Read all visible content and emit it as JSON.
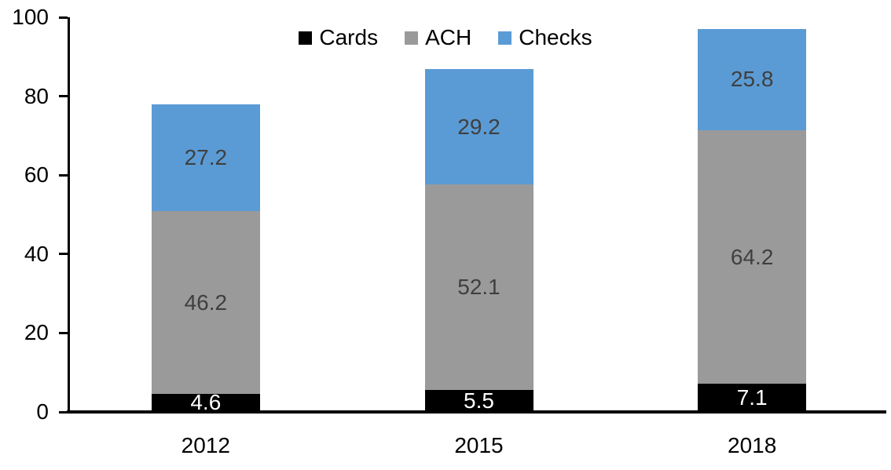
{
  "chart_data": {
    "type": "bar",
    "stacked": true,
    "categories": [
      "2012",
      "2015",
      "2018"
    ],
    "series": [
      {
        "name": "Cards",
        "color": "#000000",
        "label_color": "#ffffff",
        "values": [
          4.6,
          5.5,
          7.1
        ]
      },
      {
        "name": "ACH",
        "color": "#9a9a9a",
        "label_color": "#3f3f3f",
        "values": [
          46.2,
          52.1,
          64.2
        ]
      },
      {
        "name": "Checks",
        "color": "#5b9bd5",
        "label_color": "#3f3f3f",
        "values": [
          27.2,
          29.2,
          25.8
        ]
      }
    ],
    "yticks": [
      0,
      20,
      40,
      60,
      80,
      100
    ],
    "ylim": [
      0,
      100
    ],
    "xlabel": "",
    "ylabel": "",
    "title": "",
    "legend_position": "top",
    "grid": false,
    "axis_color": "#000000",
    "background_color": "#ffffff",
    "data_labels_shown": true
  }
}
